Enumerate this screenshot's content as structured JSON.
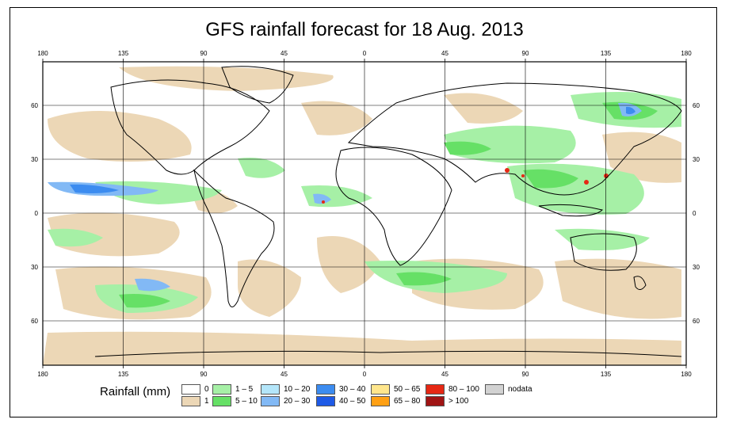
{
  "title": "GFS rainfall forecast for 18 Aug. 2013",
  "map": {
    "lon_ticks": [
      "180",
      "135",
      "90",
      "45",
      "0",
      "45",
      "90",
      "135",
      "180"
    ],
    "lat_ticks": [
      "60",
      "30",
      "0",
      "30",
      "60"
    ]
  },
  "legend": {
    "title": "Rainfall (mm)",
    "items": [
      {
        "label": "0",
        "color": "#ffffff"
      },
      {
        "label": "1",
        "color": "#ecd7b6"
      },
      {
        "label": "1 – 5",
        "color": "#a6f0a6"
      },
      {
        "label": "5 – 10",
        "color": "#66e066"
      },
      {
        "label": "10 – 20",
        "color": "#b4e6fa"
      },
      {
        "label": "20 – 30",
        "color": "#82b9f5"
      },
      {
        "label": "30 – 40",
        "color": "#3c8cf0"
      },
      {
        "label": "40 – 50",
        "color": "#1e5ae6"
      },
      {
        "label": "50 – 65",
        "color": "#ffe68c"
      },
      {
        "label": "65 – 80",
        "color": "#ffa014"
      },
      {
        "label": "80 – 100",
        "color": "#e62814"
      },
      {
        "label": "> 100",
        "color": "#a01414"
      },
      {
        "label": "nodata",
        "color": "#d2d2d2"
      }
    ]
  }
}
